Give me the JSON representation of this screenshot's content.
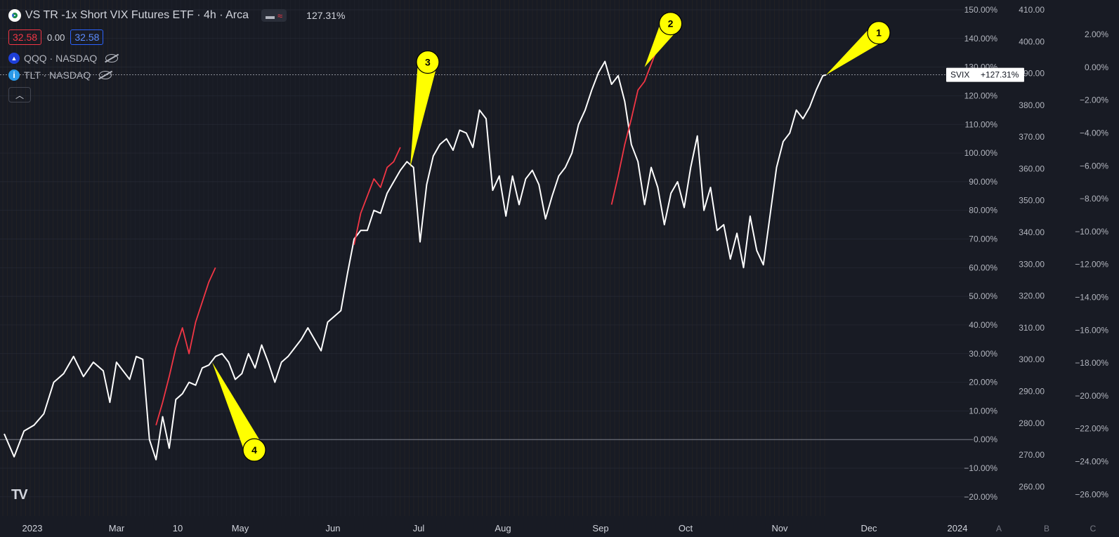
{
  "header": {
    "title": "VS TR -1x Short VIX Futures ETF · 4h · Arca",
    "change_pct": "127.31%",
    "open_value": "32.58",
    "change_value": "0.00",
    "close_value": "32.58",
    "compare1": "QQQ · NASDAQ",
    "compare2": "TLT · NASDAQ"
  },
  "price_tag": {
    "symbol": "SVIX",
    "value": "+127.31%"
  },
  "bottom_buttons": [
    "A",
    "B",
    "C"
  ],
  "colors": {
    "background": "#181b24",
    "main_line": "#ffffff",
    "highlight_line": "#f23645",
    "callout": "#ffff00"
  },
  "chart_data": {
    "type": "line",
    "x_ticks": [
      "2023",
      "Mar",
      "10",
      "May",
      "Jun",
      "Jul",
      "Aug",
      "Sep",
      "Oct",
      "Nov",
      "Dec",
      "2024"
    ],
    "y_axis_primary": {
      "labels": [
        "150.00%",
        "140.00%",
        "130.00%",
        "120.00%",
        "110.00%",
        "100.00%",
        "90.00%",
        "80.00%",
        "70.00%",
        "60.00%",
        "50.00%",
        "40.00%",
        "30.00%",
        "20.00%",
        "10.00%",
        "0.00%",
        "−10.00%",
        "−20.00%"
      ],
      "range": [
        -22,
        150
      ]
    },
    "y_axis_secondary": {
      "labels": [
        "410.00",
        "400.00",
        "390.00",
        "380.00",
        "370.00",
        "360.00",
        "350.00",
        "340.00",
        "330.00",
        "320.00",
        "310.00",
        "300.00",
        "290.00",
        "280.00",
        "270.00",
        "260.00"
      ],
      "range": [
        255,
        410
      ]
    },
    "y_axis_tertiary": {
      "labels": [
        "2.00%",
        "0.00%",
        "−2.00%",
        "−4.00%",
        "−6.00%",
        "−8.00%",
        "−10.00%",
        "−12.00%",
        "−14.00%",
        "−16.00%",
        "−18.00%",
        "−20.00%",
        "−22.00%",
        "−24.00%",
        "−26.00%"
      ],
      "range": [
        -26.5,
        3.5
      ]
    },
    "series": [
      {
        "values": [
          [
            0,
            2
          ],
          [
            3,
            -6
          ],
          [
            6,
            3
          ],
          [
            9,
            5
          ],
          [
            12,
            9
          ],
          [
            15,
            20
          ],
          [
            18,
            23
          ],
          [
            21,
            29
          ],
          [
            24,
            22
          ],
          [
            27,
            27
          ],
          [
            30,
            24
          ],
          [
            32,
            13
          ],
          [
            34,
            27
          ],
          [
            36,
            24
          ],
          [
            38,
            21
          ],
          [
            40,
            29
          ],
          [
            42,
            28
          ],
          [
            44,
            0
          ],
          [
            46,
            -7
          ],
          [
            48,
            8
          ],
          [
            50,
            -3
          ],
          [
            52,
            14
          ],
          [
            54,
            16
          ],
          [
            56,
            20
          ],
          [
            58,
            19
          ],
          [
            60,
            25
          ],
          [
            62,
            26
          ],
          [
            64,
            29
          ],
          [
            66,
            30
          ],
          [
            68,
            27
          ],
          [
            70,
            21
          ],
          [
            72,
            23
          ],
          [
            74,
            30
          ],
          [
            76,
            25
          ],
          [
            78,
            33
          ],
          [
            80,
            27
          ],
          [
            82,
            20
          ],
          [
            84,
            27
          ],
          [
            86,
            29
          ],
          [
            88,
            32
          ],
          [
            90,
            35
          ],
          [
            92,
            39
          ],
          [
            94,
            35
          ],
          [
            96,
            31
          ],
          [
            98,
            41
          ],
          [
            100,
            43
          ],
          [
            102,
            45
          ],
          [
            104,
            58
          ],
          [
            106,
            70
          ],
          [
            108,
            73
          ],
          [
            110,
            73
          ],
          [
            112,
            80
          ],
          [
            114,
            79
          ],
          [
            116,
            86
          ],
          [
            118,
            90
          ],
          [
            120,
            94
          ],
          [
            122,
            97
          ],
          [
            124,
            95
          ],
          [
            126,
            69
          ],
          [
            128,
            89
          ],
          [
            130,
            99
          ],
          [
            132,
            103
          ],
          [
            134,
            105
          ],
          [
            136,
            101
          ],
          [
            138,
            108
          ],
          [
            140,
            107
          ],
          [
            142,
            102
          ],
          [
            144,
            115
          ],
          [
            146,
            112
          ],
          [
            148,
            87
          ],
          [
            150,
            92
          ],
          [
            152,
            78
          ],
          [
            154,
            92
          ],
          [
            156,
            82
          ],
          [
            158,
            91
          ],
          [
            160,
            94
          ],
          [
            162,
            89
          ],
          [
            164,
            77
          ],
          [
            166,
            85
          ],
          [
            168,
            92
          ],
          [
            170,
            95
          ],
          [
            172,
            100
          ],
          [
            174,
            110
          ],
          [
            176,
            115
          ],
          [
            178,
            122
          ],
          [
            180,
            128
          ],
          [
            182,
            132
          ],
          [
            184,
            124
          ],
          [
            186,
            127
          ],
          [
            188,
            118
          ],
          [
            190,
            103
          ],
          [
            192,
            97
          ],
          [
            194,
            82
          ],
          [
            196,
            95
          ],
          [
            198,
            88
          ],
          [
            200,
            75
          ],
          [
            202,
            86
          ],
          [
            204,
            90
          ],
          [
            206,
            81
          ],
          [
            208,
            95
          ],
          [
            210,
            106
          ],
          [
            212,
            80
          ],
          [
            214,
            88
          ],
          [
            216,
            73
          ],
          [
            218,
            75
          ],
          [
            220,
            63
          ],
          [
            222,
            72
          ],
          [
            224,
            60
          ],
          [
            226,
            78
          ],
          [
            228,
            66
          ],
          [
            230,
            61
          ],
          [
            232,
            78
          ],
          [
            234,
            95
          ],
          [
            236,
            104
          ],
          [
            238,
            107
          ],
          [
            240,
            115
          ],
          [
            242,
            112
          ],
          [
            244,
            116
          ],
          [
            246,
            122
          ],
          [
            248,
            127
          ],
          [
            249,
            127.31
          ]
        ]
      },
      {
        "values": [
          [
            46,
            5
          ],
          [
            48,
            13
          ],
          [
            50,
            22
          ],
          [
            52,
            32
          ],
          [
            54,
            39
          ],
          [
            56,
            30
          ],
          [
            58,
            41
          ],
          [
            60,
            48
          ],
          [
            62,
            55
          ],
          [
            64,
            60
          ]
        ]
      },
      {
        "values": [
          [
            106,
            68
          ],
          [
            108,
            79
          ],
          [
            110,
            85
          ],
          [
            112,
            91
          ],
          [
            114,
            88
          ],
          [
            116,
            95
          ],
          [
            118,
            97
          ],
          [
            120,
            102
          ]
        ]
      },
      {
        "values": [
          [
            184,
            82
          ],
          [
            186,
            92
          ],
          [
            188,
            103
          ],
          [
            190,
            112
          ],
          [
            192,
            122
          ],
          [
            194,
            125
          ],
          [
            196,
            131
          ],
          [
            198,
            137
          ],
          [
            200,
            140
          ]
        ]
      }
    ],
    "annotations": [
      {
        "label": "1",
        "x": 249,
        "y": 127.31
      },
      {
        "label": "2",
        "x": 194,
        "y": 130
      },
      {
        "label": "3",
        "x": 123,
        "y": 95
      },
      {
        "label": "4",
        "x": 63,
        "y": 27
      }
    ]
  }
}
